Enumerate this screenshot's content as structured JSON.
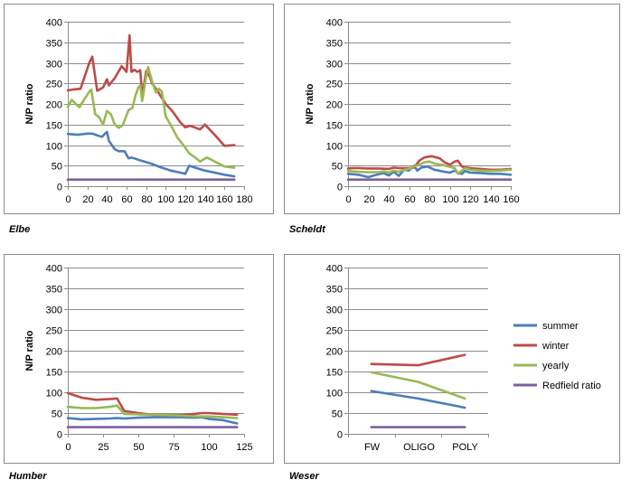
{
  "captions": [
    "Elbe",
    "Scheldt",
    "Humber",
    "Weser"
  ],
  "colors": {
    "summer": "#4A7EBB",
    "winter": "#BE4B48",
    "yearly": "#98B954",
    "redfield": "#7D60A0"
  },
  "chart_data": [
    {
      "type": "line",
      "name": "Elbe",
      "xlim": [
        0,
        180
      ],
      "xticks": [
        0,
        20,
        40,
        60,
        80,
        100,
        120,
        140,
        160,
        180
      ],
      "ylim": [
        0,
        400
      ],
      "yticks": [
        0,
        50,
        100,
        150,
        200,
        250,
        300,
        350,
        400
      ],
      "ylabel": "N/P ratio",
      "legend": "right",
      "series": [
        {
          "name": "summer",
          "color": "summer",
          "points": [
            [
              0,
              127
            ],
            [
              10,
              125
            ],
            [
              20,
              128
            ],
            [
              25,
              128
            ],
            [
              32,
              122
            ],
            [
              35,
              120
            ],
            [
              38,
              128
            ],
            [
              40,
              132
            ],
            [
              42,
              110
            ],
            [
              48,
              90
            ],
            [
              52,
              85
            ],
            [
              58,
              85
            ],
            [
              62,
              68
            ],
            [
              65,
              70
            ],
            [
              75,
              62
            ],
            [
              85,
              55
            ],
            [
              95,
              46
            ],
            [
              105,
              38
            ],
            [
              115,
              33
            ],
            [
              120,
              30
            ],
            [
              124,
              50
            ],
            [
              130,
              45
            ],
            [
              140,
              38
            ],
            [
              150,
              33
            ],
            [
              160,
              28
            ],
            [
              170,
              24
            ]
          ]
        },
        {
          "name": "winter",
          "color": "winter",
          "points": [
            [
              0,
              233
            ],
            [
              5,
              235
            ],
            [
              13,
              237
            ],
            [
              22,
              300
            ],
            [
              25,
              315
            ],
            [
              30,
              232
            ],
            [
              36,
              240
            ],
            [
              40,
              260
            ],
            [
              42,
              245
            ],
            [
              48,
              263
            ],
            [
              55,
              292
            ],
            [
              60,
              278
            ],
            [
              63,
              367
            ],
            [
              65,
              278
            ],
            [
              68,
              283
            ],
            [
              71,
              278
            ],
            [
              74,
              282
            ],
            [
              76,
              217
            ],
            [
              80,
              280
            ],
            [
              84,
              265
            ],
            [
              86,
              250
            ],
            [
              92,
              230
            ],
            [
              100,
              200
            ],
            [
              107,
              182
            ],
            [
              115,
              155
            ],
            [
              120,
              143
            ],
            [
              125,
              147
            ],
            [
              135,
              138
            ],
            [
              140,
              150
            ],
            [
              150,
              125
            ],
            [
              160,
              98
            ],
            [
              170,
              100
            ]
          ]
        },
        {
          "name": "yearly",
          "color": "yearly",
          "points": [
            [
              0,
              193
            ],
            [
              4,
              210
            ],
            [
              8,
              200
            ],
            [
              12,
              192
            ],
            [
              16,
              208
            ],
            [
              22,
              230
            ],
            [
              24,
              235
            ],
            [
              28,
              175
            ],
            [
              32,
              168
            ],
            [
              36,
              150
            ],
            [
              40,
              183
            ],
            [
              44,
              175
            ],
            [
              48,
              150
            ],
            [
              52,
              142
            ],
            [
              56,
              148
            ],
            [
              62,
              185
            ],
            [
              66,
              190
            ],
            [
              69,
              220
            ],
            [
              72,
              240
            ],
            [
              74,
              245
            ],
            [
              76,
              207
            ],
            [
              80,
              267
            ],
            [
              82,
              290
            ],
            [
              86,
              255
            ],
            [
              90,
              228
            ],
            [
              93,
              237
            ],
            [
              96,
              230
            ],
            [
              100,
              170
            ],
            [
              106,
              145
            ],
            [
              112,
              118
            ],
            [
              118,
              100
            ],
            [
              124,
              80
            ],
            [
              130,
              70
            ],
            [
              135,
              60
            ],
            [
              142,
              70
            ],
            [
              150,
              60
            ],
            [
              160,
              48
            ],
            [
              170,
              45
            ]
          ]
        },
        {
          "name": "Redfield",
          "color": "redfield",
          "points": [
            [
              0,
              16
            ],
            [
              170,
              16
            ]
          ]
        }
      ]
    },
    {
      "type": "line",
      "name": "Scheldt",
      "xlim": [
        0,
        160
      ],
      "xticks": [
        0,
        20,
        40,
        60,
        80,
        100,
        120,
        140,
        160
      ],
      "ylim": [
        0,
        400
      ],
      "yticks": [
        0,
        50,
        100,
        150,
        200,
        250,
        300,
        350,
        400
      ],
      "ylabel": "N/P ratio",
      "legend": "none",
      "series": [
        {
          "name": "summer",
          "color": "summer",
          "points": [
            [
              0,
              30
            ],
            [
              10,
              28
            ],
            [
              15,
              25
            ],
            [
              20,
              22
            ],
            [
              25,
              26
            ],
            [
              35,
              32
            ],
            [
              40,
              26
            ],
            [
              45,
              35
            ],
            [
              50,
              25
            ],
            [
              55,
              40
            ],
            [
              60,
              38
            ],
            [
              65,
              50
            ],
            [
              68,
              38
            ],
            [
              72,
              45
            ],
            [
              78,
              48
            ],
            [
              85,
              40
            ],
            [
              95,
              35
            ],
            [
              100,
              33
            ],
            [
              105,
              38
            ],
            [
              108,
              32
            ],
            [
              112,
              30
            ],
            [
              115,
              37
            ],
            [
              120,
              33
            ],
            [
              130,
              32
            ],
            [
              140,
              30
            ],
            [
              150,
              30
            ],
            [
              160,
              28
            ]
          ]
        },
        {
          "name": "winter",
          "color": "winter",
          "points": [
            [
              0,
              43
            ],
            [
              5,
              44
            ],
            [
              10,
              44
            ],
            [
              20,
              43
            ],
            [
              30,
              43
            ],
            [
              40,
              42
            ],
            [
              45,
              45
            ],
            [
              50,
              44
            ],
            [
              55,
              44
            ],
            [
              60,
              44
            ],
            [
              65,
              45
            ],
            [
              70,
              62
            ],
            [
              75,
              70
            ],
            [
              82,
              73
            ],
            [
              90,
              68
            ],
            [
              95,
              58
            ],
            [
              100,
              52
            ],
            [
              105,
              60
            ],
            [
              108,
              62
            ],
            [
              112,
              48
            ],
            [
              115,
              46
            ],
            [
              120,
              44
            ],
            [
              130,
              42
            ],
            [
              140,
              40
            ],
            [
              150,
              40
            ],
            [
              160,
              42
            ]
          ]
        },
        {
          "name": "yearly",
          "color": "yearly",
          "points": [
            [
              0,
              37
            ],
            [
              10,
              35
            ],
            [
              20,
              34
            ],
            [
              30,
              34
            ],
            [
              35,
              36
            ],
            [
              40,
              33
            ],
            [
              45,
              38
            ],
            [
              50,
              35
            ],
            [
              55,
              40
            ],
            [
              60,
              42
            ],
            [
              65,
              48
            ],
            [
              70,
              52
            ],
            [
              75,
              58
            ],
            [
              80,
              60
            ],
            [
              85,
              55
            ],
            [
              92,
              52
            ],
            [
              100,
              47
            ],
            [
              105,
              44
            ],
            [
              108,
              30
            ],
            [
              112,
              38
            ],
            [
              115,
              44
            ],
            [
              120,
              40
            ],
            [
              130,
              38
            ],
            [
              140,
              37
            ],
            [
              150,
              38
            ],
            [
              160,
              40
            ]
          ]
        },
        {
          "name": "Redfield",
          "color": "redfield",
          "points": [
            [
              0,
              16
            ],
            [
              160,
              16
            ]
          ]
        }
      ]
    },
    {
      "type": "line",
      "name": "Humber",
      "xlim": [
        0,
        125
      ],
      "xticks": [
        0,
        25,
        50,
        75,
        100,
        125
      ],
      "ylim": [
        0,
        400
      ],
      "yticks": [
        0,
        50,
        100,
        150,
        200,
        250,
        300,
        350,
        400
      ],
      "ylabel": "N/P ratio",
      "legend": "none",
      "series": [
        {
          "name": "summer",
          "color": "summer",
          "points": [
            [
              0,
              38
            ],
            [
              10,
              35
            ],
            [
              20,
              36
            ],
            [
              30,
              37
            ],
            [
              35,
              38
            ],
            [
              40,
              37
            ],
            [
              50,
              39
            ],
            [
              60,
              40
            ],
            [
              70,
              40
            ],
            [
              80,
              40
            ],
            [
              90,
              39
            ],
            [
              95,
              40
            ],
            [
              100,
              36
            ],
            [
              110,
              33
            ],
            [
              120,
              25
            ]
          ]
        },
        {
          "name": "winter",
          "color": "winter",
          "points": [
            [
              0,
              98
            ],
            [
              10,
              87
            ],
            [
              20,
              82
            ],
            [
              30,
              84
            ],
            [
              35,
              85
            ],
            [
              40,
              55
            ],
            [
              50,
              50
            ],
            [
              60,
              46
            ],
            [
              70,
              45
            ],
            [
              80,
              45
            ],
            [
              90,
              48
            ],
            [
              95,
              50
            ],
            [
              100,
              50
            ],
            [
              110,
              48
            ],
            [
              120,
              46
            ]
          ]
        },
        {
          "name": "yearly",
          "color": "yearly",
          "points": [
            [
              0,
              65
            ],
            [
              10,
              62
            ],
            [
              20,
              62
            ],
            [
              30,
              65
            ],
            [
              35,
              68
            ],
            [
              40,
              48
            ],
            [
              50,
              47
            ],
            [
              60,
              46
            ],
            [
              70,
              45
            ],
            [
              80,
              44
            ],
            [
              90,
              42
            ],
            [
              95,
              42
            ],
            [
              100,
              42
            ],
            [
              110,
              40
            ],
            [
              120,
              38
            ]
          ]
        },
        {
          "name": "Redfield",
          "color": "redfield",
          "points": [
            [
              0,
              16
            ],
            [
              120,
              16
            ]
          ]
        }
      ]
    },
    {
      "type": "line",
      "name": "Weser",
      "categories": [
        "FW",
        "OLIGO",
        "POLY"
      ],
      "ylim": [
        0,
        400
      ],
      "yticks": [
        0,
        50,
        100,
        150,
        200,
        250,
        300,
        350,
        400
      ],
      "ylabel": "",
      "legend": "right",
      "series": [
        {
          "name": "summer",
          "color": "summer",
          "values": [
            103,
            85,
            63
          ]
        },
        {
          "name": "winter",
          "color": "winter",
          "values": [
            168,
            165,
            190
          ]
        },
        {
          "name": "yearly",
          "color": "yearly",
          "values": [
            148,
            125,
            85
          ]
        },
        {
          "name": "Redfield ratio",
          "color": "redfield",
          "values": [
            16,
            16,
            16
          ]
        }
      ]
    }
  ]
}
